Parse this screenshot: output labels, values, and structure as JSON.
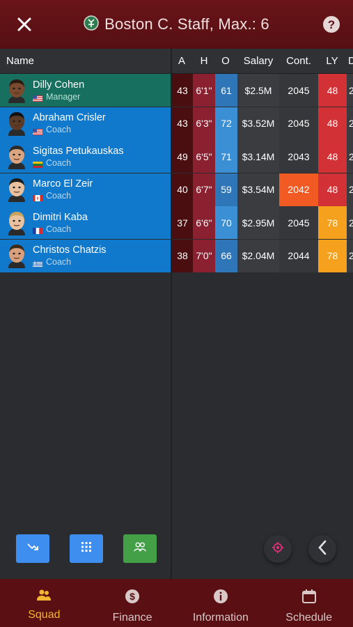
{
  "header": {
    "title": "Boston C. Staff, Max.: 6",
    "close_icon": "close-icon",
    "help_icon": "help-icon",
    "logo_icon": "team-logo-icon"
  },
  "columns": {
    "name": "Name",
    "a": "A",
    "h": "H",
    "o": "O",
    "salary": "Salary",
    "cont": "Cont.",
    "ly": "LY",
    "d": "D"
  },
  "staff": [
    {
      "name": "Dilly Cohen",
      "role": "Manager",
      "country": "us",
      "skin": "#7a4a30",
      "hair": "#2a1a10",
      "a": "43",
      "h": "6'1\"",
      "o": "61",
      "salary": "$2.5M",
      "cont": "2045",
      "ly": "48",
      "d": "2"
    },
    {
      "name": "Abraham Crisler",
      "role": "Coach",
      "country": "us",
      "skin": "#5b3a26",
      "hair": "#111111",
      "a": "43",
      "h": "6'3\"",
      "o": "72",
      "salary": "$3.52M",
      "cont": "2045",
      "ly": "48",
      "d": "2"
    },
    {
      "name": "Sigitas Petukauskas",
      "role": "Coach",
      "country": "lt",
      "skin": "#d9a580",
      "hair": "#2b2b2b",
      "a": "49",
      "h": "6'5\"",
      "o": "71",
      "salary": "$3.14M",
      "cont": "2043",
      "ly": "48",
      "d": "2"
    },
    {
      "name": "Marco El Zeir",
      "role": "Coach",
      "country": "ca",
      "skin": "#e8c2a0",
      "hair": "#1b1b1b",
      "a": "40",
      "h": "6'7\"",
      "o": "59",
      "salary": "$3.54M",
      "cont": "2042",
      "ly": "48",
      "d": "2"
    },
    {
      "name": "Dimitri Kaba",
      "role": "Coach",
      "country": "fr",
      "skin": "#e9c3a0",
      "hair": "#c9a35c",
      "a": "37",
      "h": "6'6\"",
      "o": "70",
      "salary": "$2.95M",
      "cont": "2045",
      "ly": "78",
      "d": "2"
    },
    {
      "name": "Christos Chatzis",
      "role": "Coach",
      "country": "gr",
      "skin": "#d8a07c",
      "hair": "#3a2a1a",
      "a": "38",
      "h": "7'0\"",
      "o": "66",
      "salary": "$2.04M",
      "cont": "2044",
      "ly": "78",
      "d": "2"
    }
  ],
  "colors": {
    "header_bg": "#5e1115",
    "manager_row": "#17705f",
    "coach_row": "#1079cc",
    "age_col": "#4a0d10",
    "height_col": "#8a2030",
    "o_col": "#2d7fc4",
    "salary_col": "#3a3c40",
    "cont_col": "#35373a",
    "cont_highlight": "#f25a24",
    "ly_red": "#d23236",
    "ly_orange": "#f5a11d",
    "tab_active": "#f2b630",
    "btn_blue": "#3e8ef0",
    "btn_green": "#43a047"
  },
  "actions": [
    {
      "icon": "trend-arrow-icon"
    },
    {
      "icon": "grid-icon"
    },
    {
      "icon": "group-icon"
    }
  ],
  "tabs": [
    {
      "label": "Squad",
      "icon": "squad-icon",
      "active": true
    },
    {
      "label": "Finance",
      "icon": "dollar-icon",
      "active": false
    },
    {
      "label": "Information",
      "icon": "info-icon",
      "active": false
    },
    {
      "label": "Schedule",
      "icon": "calendar-icon",
      "active": false
    }
  ]
}
